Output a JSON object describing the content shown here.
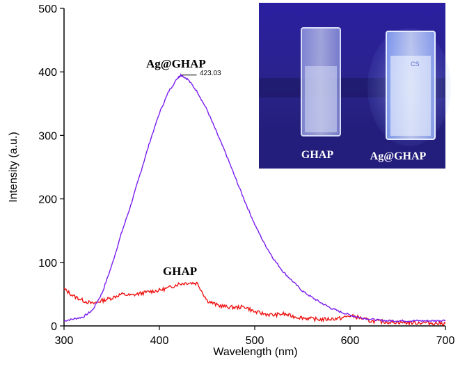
{
  "chart_data": {
    "type": "line",
    "title": "",
    "xlabel": "Wavelength (nm)",
    "ylabel": "Intensity (a.u.)",
    "xlim": [
      300,
      700
    ],
    "ylim": [
      0,
      500
    ],
    "xticks": [
      300,
      400,
      500,
      600,
      700
    ],
    "yticks": [
      0,
      100,
      200,
      300,
      400,
      500
    ],
    "grid": false,
    "series": [
      {
        "name": "Ag@GHAP",
        "color": "#7a1cf0",
        "x": [
          300,
          310,
          320,
          330,
          340,
          350,
          360,
          370,
          380,
          390,
          400,
          410,
          420,
          423,
          430,
          440,
          450,
          460,
          470,
          480,
          490,
          500,
          510,
          520,
          530,
          540,
          550,
          560,
          570,
          580,
          590,
          600,
          610,
          620,
          630,
          640,
          650,
          660,
          670,
          680,
          690,
          700
        ],
        "y": [
          8,
          11,
          14,
          25,
          52,
          95,
          145,
          190,
          240,
          290,
          335,
          370,
          392,
          395,
          388,
          368,
          340,
          305,
          270,
          232,
          195,
          160,
          130,
          105,
          85,
          70,
          55,
          45,
          36,
          28,
          22,
          17,
          13,
          11,
          9,
          8,
          8,
          8,
          8,
          8,
          8,
          9
        ]
      },
      {
        "name": "GHAP",
        "color": "#ee1111",
        "x": [
          300,
          310,
          320,
          330,
          340,
          350,
          360,
          370,
          380,
          390,
          400,
          410,
          420,
          430,
          440,
          450,
          460,
          470,
          480,
          490,
          500,
          510,
          520,
          530,
          540,
          550,
          560,
          570,
          580,
          590,
          600,
          610,
          620,
          630,
          640,
          650,
          660,
          670,
          680,
          690,
          700
        ],
        "y": [
          58,
          47,
          40,
          35,
          40,
          44,
          50,
          48,
          51,
          54,
          56,
          60,
          66,
          68,
          67,
          40,
          33,
          30,
          29,
          30,
          22,
          19,
          17,
          19,
          15,
          13,
          11,
          10,
          11,
          12,
          16,
          13,
          8,
          7,
          6,
          6,
          5,
          5,
          5,
          4,
          4
        ]
      }
    ],
    "annotations": {
      "peak_value": "423.03",
      "peak_x": 423,
      "peak_y": 395
    }
  },
  "labels": {
    "ag_ghap": "Ag@GHAP",
    "ghap": "GHAP",
    "peak": "423.03"
  },
  "inset": {
    "left_label": "GHAP",
    "right_label": "Ag@GHAP",
    "cuvette_mark": "CS",
    "background_color": "#2a1f8a"
  }
}
